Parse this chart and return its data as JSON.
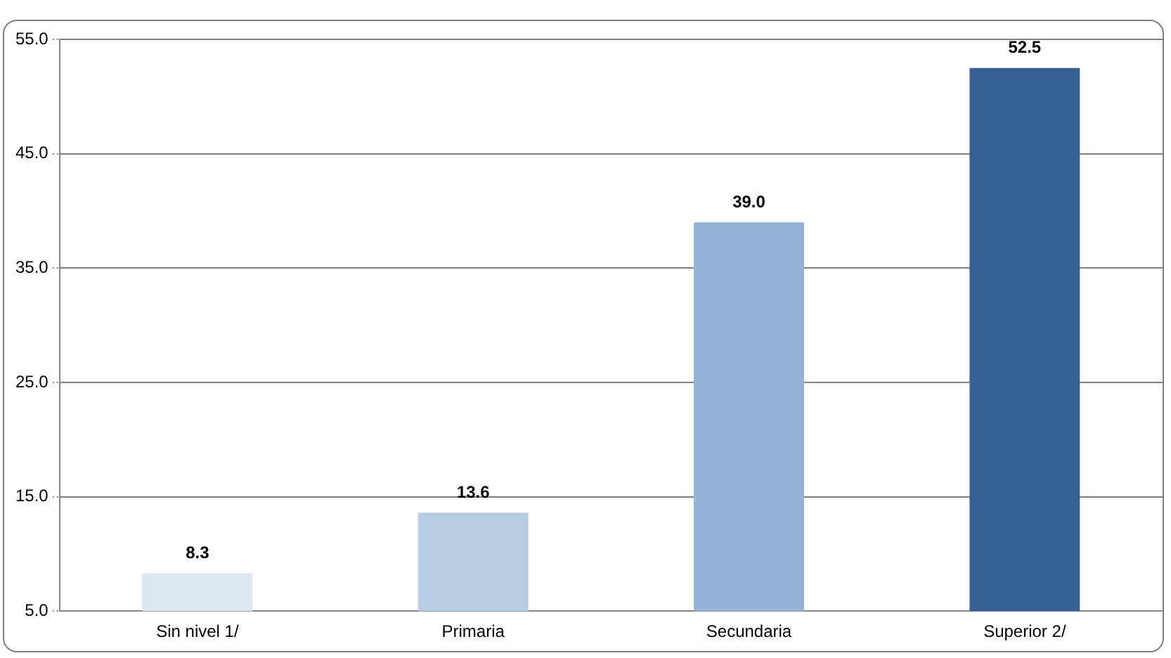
{
  "chart_data": {
    "type": "bar",
    "categories": [
      "Sin nivel 1/",
      "Primaria",
      "Secundaria",
      "Superior 2/"
    ],
    "values": [
      8.3,
      13.6,
      39.0,
      52.5
    ],
    "colors": [
      "#dce6f1",
      "#b8cce4",
      "#95b3d7",
      "#366092"
    ],
    "ylim": [
      5,
      55
    ],
    "yticks": [
      {
        "value": 5,
        "label": "5.0"
      },
      {
        "value": 15,
        "label": "15.0"
      },
      {
        "value": 25,
        "label": "25.0"
      },
      {
        "value": 35,
        "label": "35.0"
      },
      {
        "value": 45,
        "label": "45.0"
      },
      {
        "value": 55,
        "label": "55.0"
      }
    ],
    "value_labels": [
      "8.3",
      "13.6",
      "39.0",
      "52.5"
    ],
    "grid": "y"
  }
}
